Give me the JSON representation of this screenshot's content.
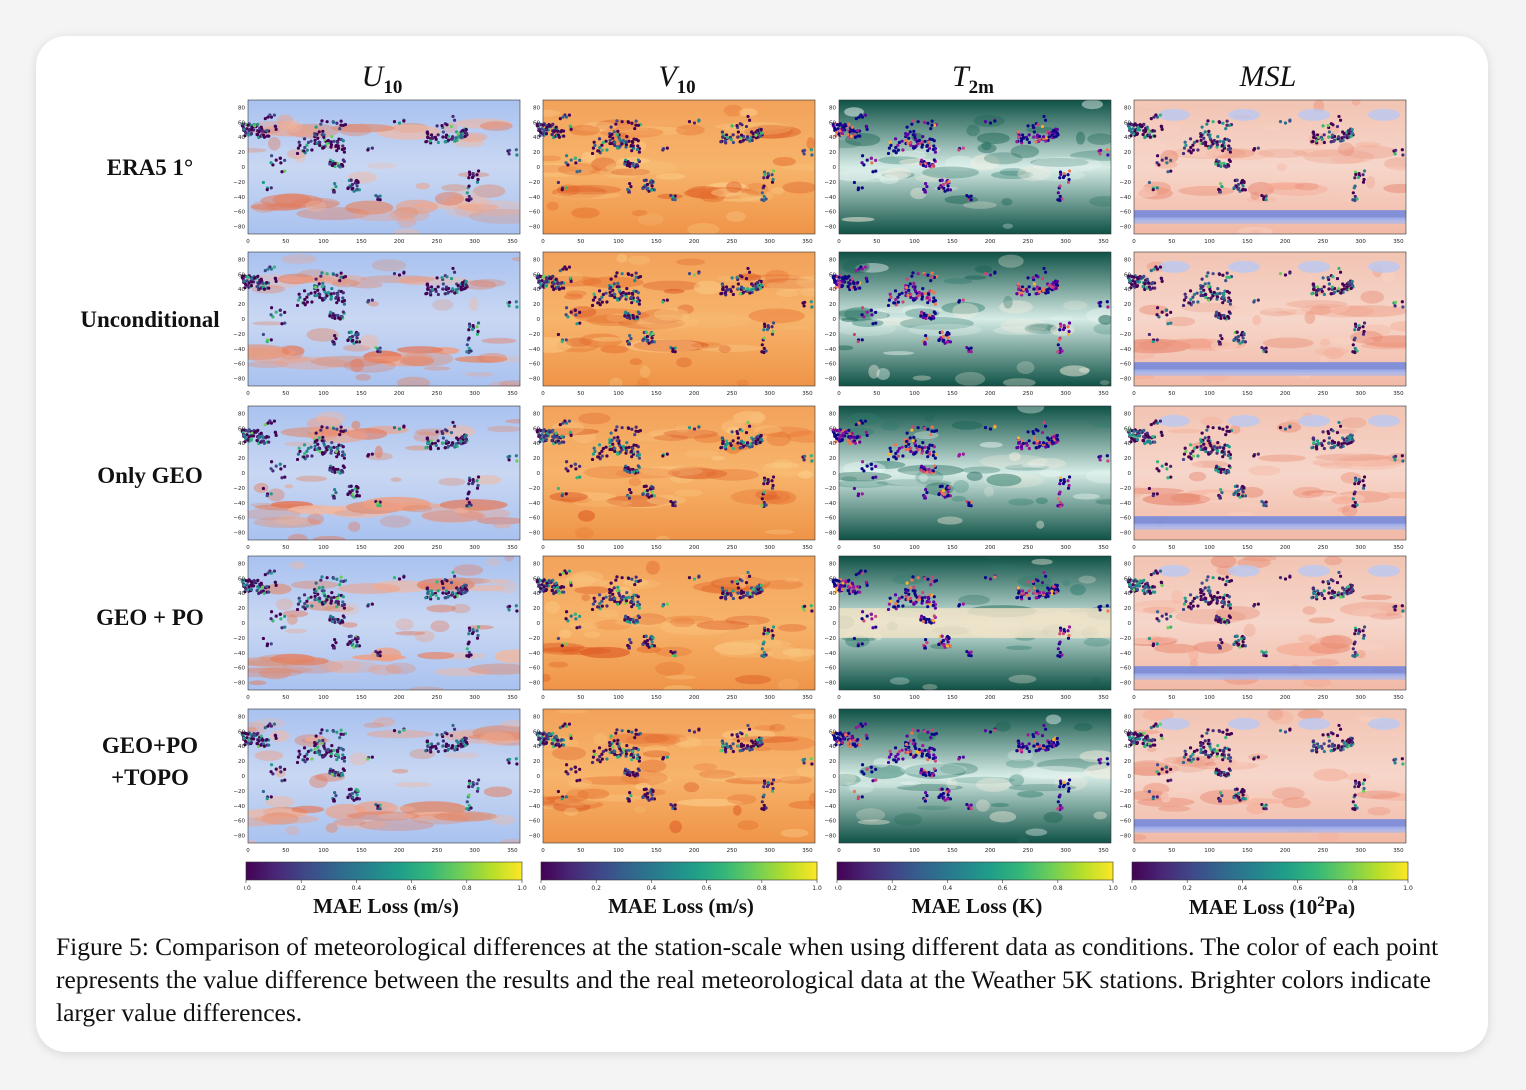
{
  "columns": [
    {
      "id": "u10",
      "base": "U",
      "sub": "10",
      "colorbar_label": "MAE Loss (m/s)",
      "background": "coolwarm-wind"
    },
    {
      "id": "v10",
      "base": "V",
      "sub": "10",
      "colorbar_label": "MAE Loss (m/s)",
      "background": "orange-wind"
    },
    {
      "id": "t2m",
      "base": "T",
      "sub": "2m",
      "colorbar_label": "MAE Loss (K)",
      "background": "teal-temperature"
    },
    {
      "id": "msl",
      "base": "MSL",
      "sub": "",
      "colorbar_label": "MAE Loss (10",
      "colorbar_label_sup": "2",
      "colorbar_label_tail": "Pa)",
      "background": "red-blue-pressure"
    }
  ],
  "rows": [
    {
      "label_lines": [
        "ERA5 1°"
      ]
    },
    {
      "label_lines": [
        "Unconditional"
      ]
    },
    {
      "label_lines": [
        "Only GEO"
      ]
    },
    {
      "label_lines": [
        "GEO + PO"
      ]
    },
    {
      "label_lines": [
        "GEO+PO",
        "+TOPO"
      ]
    }
  ],
  "axes": {
    "x_ticks": [
      "0",
      "50",
      "100",
      "150",
      "200",
      "250",
      "300",
      "350"
    ],
    "y_ticks": [
      "80",
      "60",
      "40",
      "20",
      "0",
      "−20",
      "−40",
      "−60",
      "−80"
    ]
  },
  "colorbar": {
    "colormap": "viridis",
    "ticks": [
      "0.0",
      "0.2",
      "0.4",
      "0.6",
      "0.8",
      "1.0"
    ]
  },
  "caption": "Figure 5: Comparison of meteorological differences at the station-scale when using different data as conditions. The color of each point represents the value difference between the results and the real meteorological data at the Weather 5K stations. Brighter colors indicate larger value differences."
}
